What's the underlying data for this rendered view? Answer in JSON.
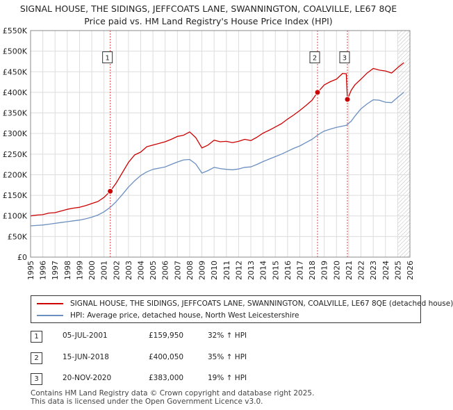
{
  "header": {
    "title_line1": "SIGNAL HOUSE, THE SIDINGS, JEFFCOATS LANE, SWANNINGTON, COALVILLE, LE67 8QE",
    "title_line2": "Price paid vs. HM Land Registry's House Price Index (HPI)"
  },
  "colors": {
    "property": "#cc0000",
    "hpi": "#6a8fc0",
    "grid": "#dddddd",
    "hatch": "#bbbbbb",
    "marker_line": "#dd4444"
  },
  "chart_data": {
    "type": "line",
    "title": "Price paid vs. HM Land Registry's House Price Index (HPI)",
    "xlabel": "",
    "ylabel": "",
    "xlim": [
      1995,
      2026
    ],
    "ylim": [
      0,
      550000
    ],
    "y_ticks": [
      0,
      50000,
      100000,
      150000,
      200000,
      250000,
      300000,
      350000,
      400000,
      450000,
      500000,
      550000
    ],
    "y_tick_labels": [
      "£0",
      "£50K",
      "£100K",
      "£150K",
      "£200K",
      "£250K",
      "£300K",
      "£350K",
      "£400K",
      "£450K",
      "£500K",
      "£550K"
    ],
    "x_ticks": [
      1995,
      1996,
      1997,
      1998,
      1999,
      2000,
      2001,
      2002,
      2003,
      2004,
      2005,
      2006,
      2007,
      2008,
      2009,
      2010,
      2011,
      2012,
      2013,
      2014,
      2015,
      2016,
      2017,
      2018,
      2019,
      2020,
      2021,
      2022,
      2023,
      2024,
      2025,
      2026
    ],
    "x_tick_labels": [
      "1995",
      "1996",
      "1997",
      "1998",
      "1999",
      "2000",
      "2001",
      "2002",
      "2003",
      "2004",
      "2005",
      "2006",
      "2007",
      "2008",
      "2009",
      "2010",
      "2011",
      "2012",
      "2013",
      "2014",
      "2015",
      "2016",
      "2017",
      "2018",
      "2019",
      "2020",
      "2021",
      "2022",
      "2023",
      "2024",
      "2025",
      "2026"
    ],
    "grid": true,
    "projection_start": 2025.0,
    "series": [
      {
        "name": "SIGNAL HOUSE, THE SIDINGS, JEFFCOATS LANE, SWANNINGTON, COALVILLE, LE67 8QE (detached house)",
        "color": "#cc0000",
        "x": [
          1995.0,
          1995.5,
          1996.0,
          1996.5,
          1997.0,
          1997.5,
          1998.0,
          1998.5,
          1999.0,
          1999.5,
          2000.0,
          2000.5,
          2001.0,
          2001.51,
          2002.0,
          2002.5,
          2003.0,
          2003.5,
          2004.0,
          2004.5,
          2005.0,
          2005.5,
          2006.0,
          2006.5,
          2007.0,
          2007.5,
          2008.0,
          2008.5,
          2009.0,
          2009.5,
          2010.0,
          2010.5,
          2011.0,
          2011.5,
          2012.0,
          2012.5,
          2013.0,
          2013.5,
          2014.0,
          2014.5,
          2015.0,
          2015.5,
          2016.0,
          2016.5,
          2017.0,
          2017.5,
          2018.0,
          2018.45,
          2018.7,
          2019.0,
          2019.5,
          2020.0,
          2020.5,
          2020.8,
          2020.89,
          2021.2,
          2021.5,
          2022.0,
          2022.5,
          2023.0,
          2023.5,
          2024.0,
          2024.5,
          2025.0,
          2025.5
        ],
        "values": [
          100000,
          102000,
          103000,
          107000,
          108000,
          112000,
          116000,
          119000,
          121000,
          125000,
          130000,
          135000,
          145000,
          159950,
          180000,
          205000,
          230000,
          248000,
          255000,
          268000,
          272000,
          276000,
          280000,
          286000,
          293000,
          296000,
          304000,
          290000,
          265000,
          272000,
          284000,
          280000,
          281000,
          278000,
          281000,
          286000,
          283000,
          291000,
          301000,
          308000,
          316000,
          324000,
          335000,
          345000,
          356000,
          368000,
          381000,
          400050,
          408000,
          418000,
          426000,
          432000,
          446000,
          445000,
          383000,
          405000,
          418000,
          432000,
          447000,
          458000,
          454000,
          452000,
          447000,
          460000,
          472000
        ]
      },
      {
        "name": "HPI: Average price, detached house, North West Leicestershire",
        "color": "#6a8fc0",
        "x": [
          1995.0,
          1995.5,
          1996.0,
          1996.5,
          1997.0,
          1997.5,
          1998.0,
          1998.5,
          1999.0,
          1999.5,
          2000.0,
          2000.5,
          2001.0,
          2001.51,
          2002.0,
          2002.5,
          2003.0,
          2003.5,
          2004.0,
          2004.5,
          2005.0,
          2005.5,
          2006.0,
          2006.5,
          2007.0,
          2007.5,
          2008.0,
          2008.5,
          2009.0,
          2009.5,
          2010.0,
          2010.5,
          2011.0,
          2011.5,
          2012.0,
          2012.5,
          2013.0,
          2013.5,
          2014.0,
          2014.5,
          2015.0,
          2015.5,
          2016.0,
          2016.5,
          2017.0,
          2017.5,
          2018.0,
          2018.45,
          2018.7,
          2019.0,
          2019.5,
          2020.0,
          2020.5,
          2020.8,
          2020.89,
          2021.2,
          2021.5,
          2022.0,
          2022.5,
          2023.0,
          2023.5,
          2024.0,
          2024.5,
          2025.0,
          2025.5
        ],
        "values": [
          76000,
          77000,
          78000,
          80000,
          82000,
          84000,
          86000,
          88000,
          90000,
          93000,
          97000,
          102000,
          110000,
          121000,
          135000,
          152000,
          170000,
          185000,
          198000,
          207000,
          213000,
          216000,
          219000,
          225000,
          231000,
          236000,
          237000,
          226000,
          204000,
          210000,
          218000,
          215000,
          213000,
          212000,
          214000,
          218000,
          219000,
          225000,
          232000,
          238000,
          244000,
          250000,
          257000,
          264000,
          270000,
          278000,
          286000,
          296000,
          301000,
          306000,
          311000,
          315000,
          318000,
          320000,
          322000,
          330000,
          342000,
          360000,
          372000,
          382000,
          381000,
          376000,
          375000,
          388000,
          400000
        ]
      }
    ],
    "sales": [
      {
        "label": "1",
        "x": 2001.51,
        "price": 159950
      },
      {
        "label": "2",
        "x": 2018.45,
        "price": 400050
      },
      {
        "label": "3",
        "x": 2020.89,
        "price": 383000
      }
    ],
    "marker_label_value": 485000
  },
  "legend": {
    "property": "SIGNAL HOUSE, THE SIDINGS, JEFFCOATS LANE, SWANNINGTON, COALVILLE, LE67 8QE (detached house)",
    "hpi": "HPI: Average price, detached house, North West Leicestershire"
  },
  "transactions": [
    {
      "num": "1",
      "date": "05-JUL-2001",
      "price": "£159,950",
      "hpi": "32% ↑ HPI"
    },
    {
      "num": "2",
      "date": "15-JUN-2018",
      "price": "£400,050",
      "hpi": "35% ↑ HPI"
    },
    {
      "num": "3",
      "date": "20-NOV-2020",
      "price": "£383,000",
      "hpi": "19% ↑ HPI"
    }
  ],
  "footer": {
    "line1": "Contains HM Land Registry data © Crown copyright and database right 2025.",
    "line2": "This data is licensed under the Open Government Licence v3.0."
  }
}
